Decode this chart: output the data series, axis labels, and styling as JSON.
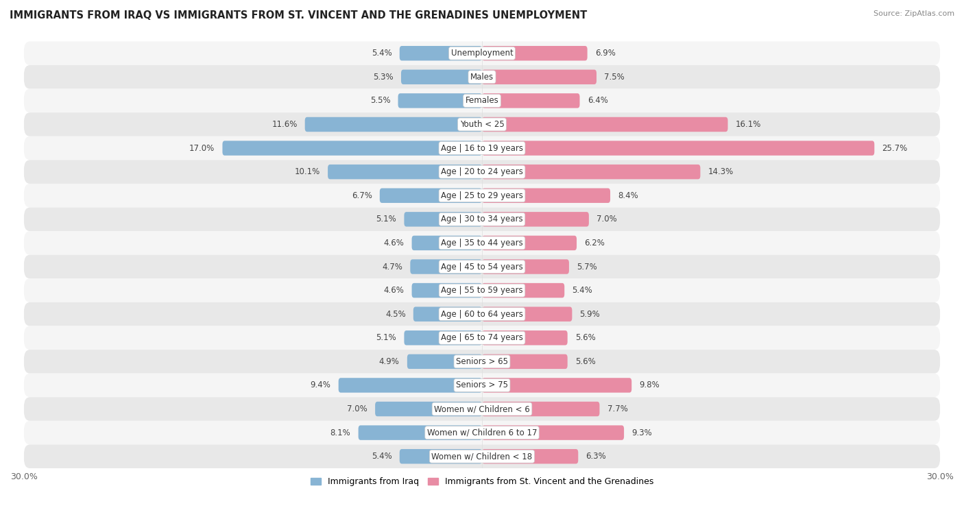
{
  "title": "IMMIGRANTS FROM IRAQ VS IMMIGRANTS FROM ST. VINCENT AND THE GRENADINES UNEMPLOYMENT",
  "source": "Source: ZipAtlas.com",
  "categories": [
    "Unemployment",
    "Males",
    "Females",
    "Youth < 25",
    "Age | 16 to 19 years",
    "Age | 20 to 24 years",
    "Age | 25 to 29 years",
    "Age | 30 to 34 years",
    "Age | 35 to 44 years",
    "Age | 45 to 54 years",
    "Age | 55 to 59 years",
    "Age | 60 to 64 years",
    "Age | 65 to 74 years",
    "Seniors > 65",
    "Seniors > 75",
    "Women w/ Children < 6",
    "Women w/ Children 6 to 17",
    "Women w/ Children < 18"
  ],
  "iraq_values": [
    5.4,
    5.3,
    5.5,
    11.6,
    17.0,
    10.1,
    6.7,
    5.1,
    4.6,
    4.7,
    4.6,
    4.5,
    5.1,
    4.9,
    9.4,
    7.0,
    8.1,
    5.4
  ],
  "svg_values": [
    6.9,
    7.5,
    6.4,
    16.1,
    25.7,
    14.3,
    8.4,
    7.0,
    6.2,
    5.7,
    5.4,
    5.9,
    5.6,
    5.6,
    9.8,
    7.7,
    9.3,
    6.3
  ],
  "iraq_color": "#88b4d4",
  "svg_color": "#e88ca4",
  "bar_height": 0.62,
  "xlim": 30.0,
  "row_colors": [
    "#f5f5f5",
    "#e8e8e8"
  ],
  "label_fontsize": 8.5,
  "value_fontsize": 8.5,
  "title_fontsize": 10.5,
  "source_fontsize": 8,
  "legend_fontsize": 9,
  "legend_iraq": "Immigrants from Iraq",
  "legend_svg": "Immigrants from St. Vincent and the Grenadines"
}
